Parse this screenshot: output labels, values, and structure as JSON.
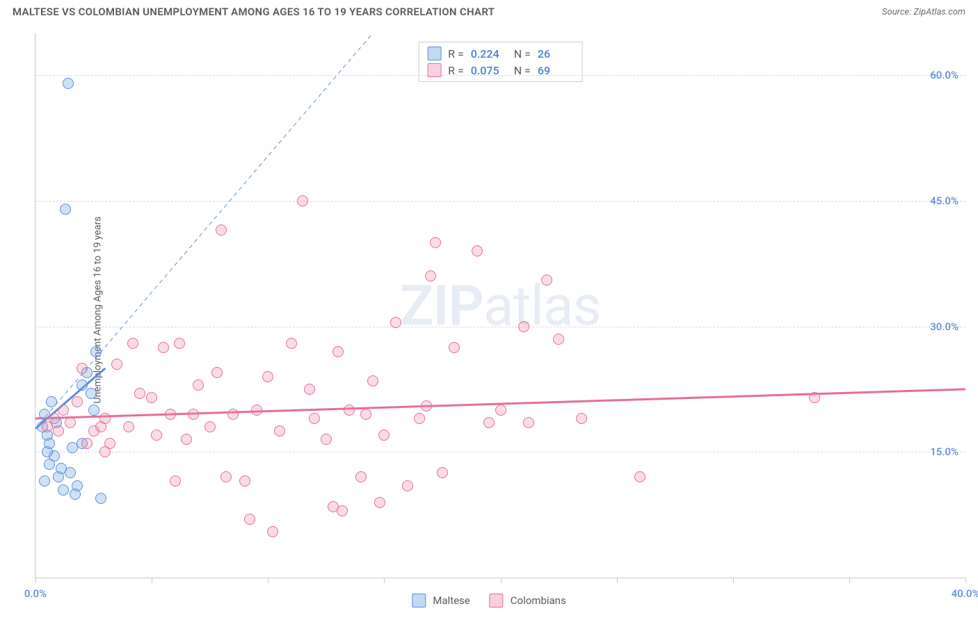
{
  "meta": {
    "title": "MALTESE VS COLOMBIAN UNEMPLOYMENT AMONG AGES 16 TO 19 YEARS CORRELATION CHART",
    "source": "Source: ZipAtlas.com",
    "watermark": "ZIPatlas",
    "y_axis_label": "Unemployment Among Ages 16 to 19 years"
  },
  "chart": {
    "type": "scatter",
    "xlim": [
      0,
      40
    ],
    "ylim": [
      0,
      65
    ],
    "x_ticks": [
      0,
      5,
      10,
      15,
      20,
      25,
      30,
      35,
      40
    ],
    "x_tick_labels": {
      "0": "0.0%",
      "40": "40.0%"
    },
    "y_ticks": [
      15,
      30,
      45,
      60
    ],
    "y_tick_labels": {
      "15": "15.0%",
      "30": "30.0%",
      "45": "45.0%",
      "60": "60.0%"
    },
    "background_color": "#ffffff",
    "grid_color": "#d8d8d8",
    "axis_color": "#c9c9c9",
    "marker_size": 16,
    "series": [
      {
        "name": "Maltese",
        "color_fill": "rgba(120,170,230,0.35)",
        "color_stroke": "#5b8edb",
        "R": "0.224",
        "N": "26",
        "trend_solid": {
          "x1": 0,
          "y1": 17.8,
          "x2": 3.0,
          "y2": 25.0,
          "width": 3
        },
        "trend_dashed": {
          "x1": 0,
          "y1": 17.8,
          "x2": 14.5,
          "y2": 65,
          "dash": "6,5",
          "width": 1
        },
        "points": [
          [
            0.3,
            18.0
          ],
          [
            0.4,
            19.5
          ],
          [
            0.5,
            17.0
          ],
          [
            0.6,
            16.0
          ],
          [
            0.7,
            21.0
          ],
          [
            0.8,
            14.5
          ],
          [
            0.9,
            18.5
          ],
          [
            1.0,
            12.0
          ],
          [
            1.1,
            13.0
          ],
          [
            1.2,
            10.5
          ],
          [
            1.5,
            12.5
          ],
          [
            1.6,
            15.5
          ],
          [
            1.8,
            11.0
          ],
          [
            2.0,
            23.0
          ],
          [
            2.2,
            24.5
          ],
          [
            2.4,
            22.0
          ],
          [
            2.6,
            27.0
          ],
          [
            2.8,
            9.5
          ],
          [
            1.3,
            44.0
          ],
          [
            1.4,
            59.0
          ],
          [
            0.4,
            11.5
          ],
          [
            0.6,
            13.5
          ],
          [
            0.5,
            15.0
          ],
          [
            1.7,
            10.0
          ],
          [
            2.0,
            16.0
          ],
          [
            2.5,
            20.0
          ]
        ]
      },
      {
        "name": "Colombians",
        "color_fill": "rgba(240,140,170,0.30)",
        "color_stroke": "#e76d9a",
        "R": "0.075",
        "N": "69",
        "trend_solid": {
          "x1": 0,
          "y1": 19.0,
          "x2": 40,
          "y2": 22.5,
          "width": 3
        },
        "points": [
          [
            0.5,
            18.0
          ],
          [
            0.8,
            19.0
          ],
          [
            1.0,
            17.5
          ],
          [
            1.2,
            20.0
          ],
          [
            1.5,
            18.5
          ],
          [
            1.8,
            21.0
          ],
          [
            2.0,
            25.0
          ],
          [
            2.2,
            16.0
          ],
          [
            2.5,
            17.5
          ],
          [
            2.8,
            18.0
          ],
          [
            3.0,
            19.0
          ],
          [
            3.2,
            16.0
          ],
          [
            3.5,
            25.5
          ],
          [
            4.0,
            18.0
          ],
          [
            4.5,
            22.0
          ],
          [
            5.0,
            21.5
          ],
          [
            5.2,
            17.0
          ],
          [
            5.5,
            27.5
          ],
          [
            5.8,
            19.5
          ],
          [
            6.0,
            11.5
          ],
          [
            6.2,
            28.0
          ],
          [
            6.5,
            16.5
          ],
          [
            7.0,
            23.0
          ],
          [
            7.5,
            18.0
          ],
          [
            7.8,
            24.5
          ],
          [
            8.0,
            41.5
          ],
          [
            8.2,
            12.0
          ],
          [
            8.5,
            19.5
          ],
          [
            9.0,
            11.5
          ],
          [
            9.2,
            7.0
          ],
          [
            9.5,
            20.0
          ],
          [
            10.0,
            24.0
          ],
          [
            10.2,
            5.5
          ],
          [
            10.5,
            17.5
          ],
          [
            11.0,
            28.0
          ],
          [
            11.5,
            45.0
          ],
          [
            11.8,
            22.5
          ],
          [
            12.0,
            19.0
          ],
          [
            12.5,
            16.5
          ],
          [
            12.8,
            8.5
          ],
          [
            13.0,
            27.0
          ],
          [
            13.2,
            8.0
          ],
          [
            13.5,
            20.0
          ],
          [
            14.0,
            12.0
          ],
          [
            14.2,
            19.5
          ],
          [
            14.5,
            23.5
          ],
          [
            15.0,
            17.0
          ],
          [
            15.5,
            30.5
          ],
          [
            16.0,
            11.0
          ],
          [
            16.5,
            19.0
          ],
          [
            17.0,
            36.0
          ],
          [
            17.2,
            40.0
          ],
          [
            17.5,
            12.5
          ],
          [
            18.0,
            27.5
          ],
          [
            14.8,
            9.0
          ],
          [
            19.0,
            39.0
          ],
          [
            19.5,
            18.5
          ],
          [
            20.0,
            20.0
          ],
          [
            21.0,
            30.0
          ],
          [
            21.2,
            18.5
          ],
          [
            16.8,
            20.5
          ],
          [
            22.0,
            35.5
          ],
          [
            22.5,
            28.5
          ],
          [
            23.5,
            19.0
          ],
          [
            26.0,
            12.0
          ],
          [
            33.5,
            21.5
          ],
          [
            3.0,
            15.0
          ],
          [
            4.2,
            28.0
          ],
          [
            6.8,
            19.5
          ]
        ]
      }
    ]
  },
  "legend": {
    "items": [
      {
        "label": "Maltese",
        "swatch": "blue"
      },
      {
        "label": "Colombians",
        "swatch": "pink"
      }
    ]
  }
}
